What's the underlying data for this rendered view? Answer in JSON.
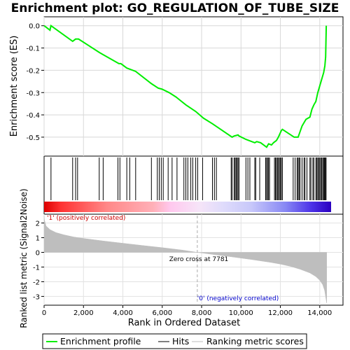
{
  "chart_data": {
    "title": "Enrichment plot: GO_REGULATION_OF_TUBE_SIZE",
    "x_axis": {
      "label": "Rank in Ordered Dataset",
      "range": [
        0,
        15180
      ],
      "ticks": [
        0,
        2000,
        4000,
        6000,
        8000,
        10000,
        12000,
        14000
      ],
      "tick_labels": [
        "0",
        "2,000",
        "4,000",
        "6,000",
        "8,000",
        "10,000",
        "12,000",
        "14,000"
      ]
    },
    "enrichment_panel": {
      "type": "line",
      "ylabel": "Enrichment score (ES)",
      "ylim": [
        -0.585,
        0.04
      ],
      "yticks": [
        0.0,
        -0.1,
        -0.2,
        -0.3,
        -0.4,
        -0.5
      ],
      "ytick_labels": [
        "0.0",
        "-0.1",
        "-0.2",
        "-0.3",
        "-0.4",
        "-0.5"
      ],
      "grid": true,
      "line_color": "#00ee00",
      "series_name": "Enrichment profile",
      "x": [
        0,
        300,
        350,
        1450,
        1600,
        1750,
        2800,
        3000,
        3800,
        3900,
        4200,
        4350,
        4650,
        5450,
        5800,
        6000,
        6350,
        6700,
        7200,
        7700,
        8100,
        8550,
        8800,
        9550,
        9650,
        9850,
        9900,
        10250,
        10700,
        10800,
        11000,
        11300,
        11400,
        11550,
        11650,
        11800,
        11900,
        12000,
        12050,
        12100,
        12700,
        12900,
        13100,
        13300,
        13500,
        13600,
        13700,
        13800,
        13900,
        14000,
        14100,
        14200,
        14260,
        14300,
        14330
      ],
      "y": [
        0.0,
        -0.02,
        0.0,
        -0.07,
        -0.06,
        -0.06,
        -0.12,
        -0.13,
        -0.17,
        -0.17,
        -0.19,
        -0.195,
        -0.205,
        -0.26,
        -0.28,
        -0.285,
        -0.3,
        -0.32,
        -0.355,
        -0.385,
        -0.415,
        -0.44,
        -0.455,
        -0.5,
        -0.495,
        -0.49,
        -0.495,
        -0.51,
        -0.525,
        -0.52,
        -0.525,
        -0.545,
        -0.53,
        -0.535,
        -0.525,
        -0.515,
        -0.5,
        -0.48,
        -0.47,
        -0.465,
        -0.5,
        -0.5,
        -0.45,
        -0.42,
        -0.41,
        -0.375,
        -0.355,
        -0.34,
        -0.3,
        -0.27,
        -0.24,
        -0.21,
        -0.18,
        -0.14,
        0.0
      ]
    },
    "hits_panel": {
      "series_name": "Hits",
      "hit_ranks": [
        350,
        1450,
        1600,
        1700,
        2800,
        3000,
        3750,
        3850,
        4200,
        4350,
        4650,
        5450,
        5750,
        5850,
        5950,
        6050,
        6300,
        6500,
        6750,
        7100,
        7200,
        7300,
        7450,
        7550,
        7700,
        7800,
        8050,
        8550,
        8650,
        8750,
        9500,
        9550,
        9650,
        9700,
        9750,
        9800,
        9850,
        9900,
        10250,
        10350,
        10450,
        10700,
        10750,
        10950,
        11250,
        11300,
        11350,
        11400,
        11450,
        11700,
        11750,
        11800,
        11850,
        11900,
        11950,
        12000,
        12050,
        12100,
        12650,
        12750,
        12850,
        12900,
        12950,
        13000,
        13100,
        13200,
        13250,
        13350,
        13500,
        13550,
        13650,
        13700,
        13800,
        13850,
        13900,
        13950,
        14000,
        14050,
        14100,
        14150,
        14200,
        14230,
        14260,
        14300,
        14320
      ]
    },
    "ranking_panel": {
      "type": "area",
      "series_name": "Ranking metric scores",
      "ylabel": "Ranked list metric (Signal2Noise)",
      "ylim": [
        -3.6,
        2.6
      ],
      "yticks": [
        2,
        1,
        0,
        -1,
        -2,
        -3
      ],
      "ytick_labels": [
        "2",
        "1",
        "0",
        "-1",
        "-2",
        "-3"
      ],
      "grid": true,
      "fill_color": "#bebebe",
      "x": [
        0,
        20,
        100,
        300,
        600,
        1000,
        1500,
        2000,
        3000,
        4000,
        5000,
        6000,
        7000,
        7781,
        8500,
        9500,
        10500,
        11500,
        12000,
        12500,
        13000,
        13500,
        13800,
        14000,
        14150,
        14250,
        14320,
        14350
      ],
      "y": [
        2.5,
        2.2,
        1.8,
        1.55,
        1.35,
        1.2,
        1.05,
        0.95,
        0.78,
        0.62,
        0.47,
        0.32,
        0.16,
        0.0,
        -0.13,
        -0.3,
        -0.48,
        -0.68,
        -0.8,
        -0.95,
        -1.15,
        -1.4,
        -1.65,
        -1.9,
        -2.2,
        -2.6,
        -3.2,
        -3.45
      ],
      "zero_cross_label": "Zero cross at 7781",
      "zero_cross": 7781,
      "positive_label": "'1' (positively correlated)",
      "negative_label": "'0' (negatively correlated)",
      "positive_color": "#cc0000",
      "negative_color": "#0000cc"
    },
    "legend": {
      "placement": "bottom",
      "entries": [
        {
          "label": "Enrichment profile",
          "color": "#00ee00"
        },
        {
          "label": "Hits",
          "color": "#000000"
        },
        {
          "label": "Ranking metric scores",
          "color": "#bebebe"
        }
      ]
    }
  }
}
